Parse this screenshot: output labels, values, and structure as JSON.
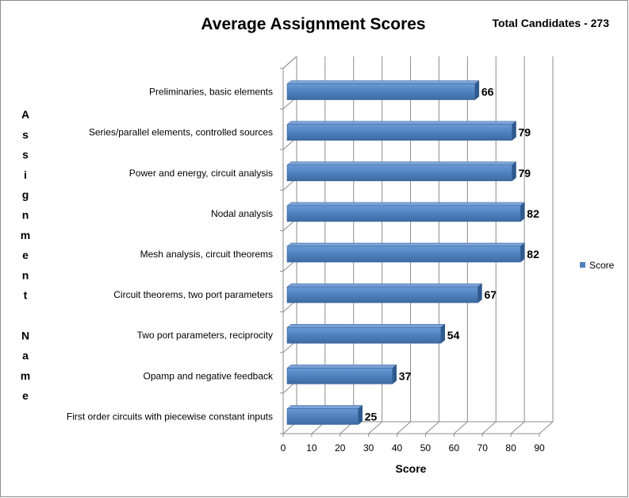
{
  "chart_data": {
    "type": "bar",
    "orientation": "horizontal",
    "title": "Average Assignment Scores",
    "subtitle": "Total Candidates - 273",
    "xlabel": "Score",
    "ylabel": "Assignment Name",
    "xlim": [
      0,
      90
    ],
    "xticks": [
      0,
      10,
      20,
      30,
      40,
      50,
      60,
      70,
      80,
      90
    ],
    "grid": true,
    "legend_position": "right",
    "categories": [
      "Preliminaries, basic elements",
      "Series/parallel elements, controlled sources",
      "Power and energy, circuit analysis",
      "Nodal analysis",
      "Mesh analysis, circuit theorems",
      "Circuit theorems, two port parameters",
      "Two port parameters, reciprocity",
      "Opamp and negative feedback",
      "First order circuits with piecewise constant inputs"
    ],
    "series": [
      {
        "name": "Score",
        "color": "#4f81bd",
        "values": [
          66,
          79,
          79,
          82,
          82,
          67,
          54,
          37,
          25
        ]
      }
    ]
  }
}
